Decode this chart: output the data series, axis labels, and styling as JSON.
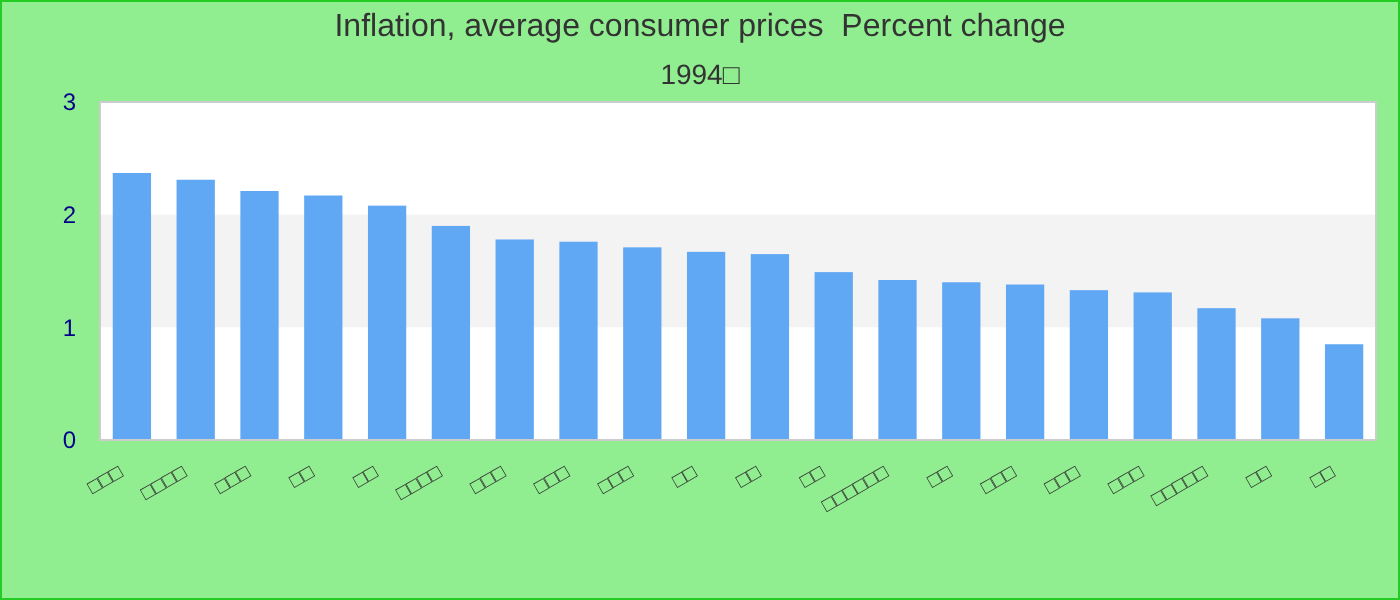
{
  "chart_data": {
    "type": "bar",
    "title": "Inflation, average consumer prices  Percent change",
    "subtitle": "1994□",
    "categories": [
      "□□□",
      "□□□□",
      "□□□",
      "□□",
      "□□",
      "□□□□",
      "□□□",
      "□□□",
      "□□□",
      "□□",
      "□□",
      "□□",
      "□□□□□□",
      "□□",
      "□□□",
      "□□□",
      "□□□",
      "□□□□□",
      "□□",
      "□□"
    ],
    "series": [
      {
        "color": "#61a8f4",
        "values": [
          2.37,
          2.31,
          2.21,
          2.17,
          2.08,
          1.9,
          1.78,
          1.76,
          1.71,
          1.67,
          1.65,
          1.49,
          1.42,
          1.4,
          1.38,
          1.33,
          1.31,
          1.17,
          1.08,
          0.85
        ]
      }
    ],
    "ylim": [
      0,
      3
    ],
    "yticks": [
      0,
      1,
      2,
      3
    ],
    "bands": [
      {
        "axis": "y",
        "from": 1,
        "to": 2,
        "color": "#f3f3f3"
      }
    ]
  }
}
